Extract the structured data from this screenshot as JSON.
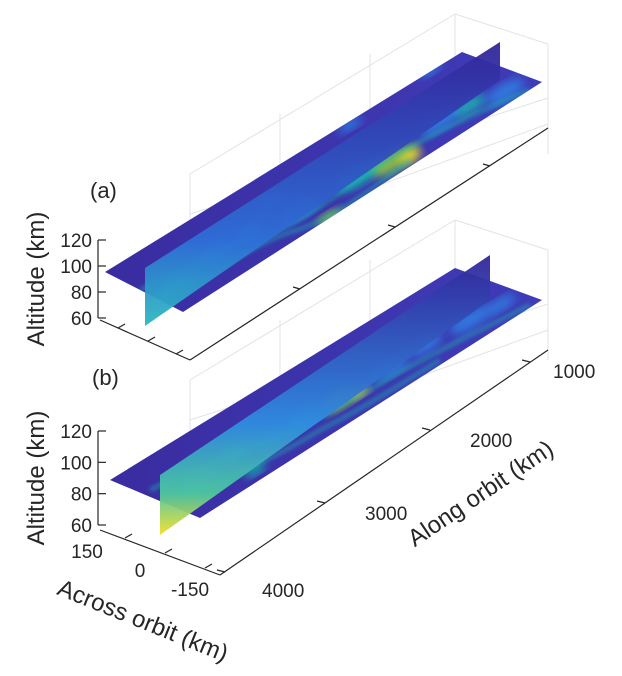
{
  "chart_data": [
    {
      "type": "heatmap",
      "panel_label": "(a)",
      "zlabel": "Altitude (km)",
      "z_ticks": [
        "120",
        "100",
        "80",
        "60"
      ],
      "z_range": [
        55,
        120
      ],
      "x_ticks": [],
      "y_ticks": [],
      "colormap": "parula",
      "grid": true
    },
    {
      "type": "heatmap",
      "panel_label": "(b)",
      "zlabel": "Altitude (km)",
      "xlabel": "Along orbit (km)",
      "ylabel": "Across orbit (km)",
      "z_ticks": [
        "120",
        "100",
        "80",
        "60"
      ],
      "z_range": [
        55,
        120
      ],
      "x_ticks": [
        "1000",
        "2000",
        "3000",
        "4000"
      ],
      "x_range": [
        500,
        4200
      ],
      "y_ticks": [
        "150",
        "0",
        "-150"
      ],
      "y_range": [
        -200,
        200
      ],
      "colormap": "parula",
      "grid": true
    }
  ],
  "colors": {
    "low": "#3e26a8",
    "mid_low": "#2e86e6",
    "mid": "#18c0b0",
    "mid_high": "#9ccf35",
    "high": "#f9dd27"
  }
}
